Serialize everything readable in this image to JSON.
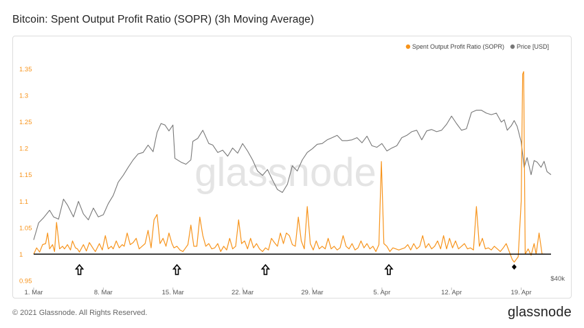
{
  "title": "Bitcoin: Spent Output Profit Ratio (SOPR) (3h Moving Average)",
  "footer": {
    "copyright": "© 2021 Glassnode. All Rights Reserved.",
    "logo": "glassnode"
  },
  "watermark": "glassnode",
  "chart_data": {
    "type": "line",
    "title": "Bitcoin: Spent Output Profit Ratio (SOPR) (3h Moving Average)",
    "x_range_days": [
      0,
      52
    ],
    "x_ticks": [
      {
        "label": "1. Mar",
        "day": 0
      },
      {
        "label": "8. Mar",
        "day": 7
      },
      {
        "label": "15. Mar",
        "day": 14
      },
      {
        "label": "22. Mar",
        "day": 21
      },
      {
        "label": "29. Mar",
        "day": 28
      },
      {
        "label": "5. Apr",
        "day": 35
      },
      {
        "label": "12. Apr",
        "day": 42
      },
      {
        "label": "19. Apr",
        "day": 49
      }
    ],
    "y_left": {
      "ticks": [
        "0.95",
        "1",
        "1.05",
        "1.1",
        "1.15",
        "1.2",
        "1.25",
        "1.3",
        "1.35"
      ],
      "min": 0.95,
      "max": 1.37
    },
    "y_right": {
      "label": "$40k",
      "min": 40000,
      "max": 70000
    },
    "reference_line": 1.0,
    "legend": {
      "placement": "top-right",
      "entries": [
        {
          "name": "Spent Output Profit Ratio (SOPR)",
          "color": "#f7931a"
        },
        {
          "name": "Price [USD]",
          "color": "#777777"
        }
      ]
    },
    "series": [
      {
        "name": "Price [USD]",
        "axis": "right",
        "color": "#777777",
        "points": [
          [
            0,
            45500
          ],
          [
            0.5,
            47800
          ],
          [
            1,
            48500
          ],
          [
            1.6,
            49500
          ],
          [
            2,
            48600
          ],
          [
            2.5,
            48300
          ],
          [
            3,
            51000
          ],
          [
            3.4,
            50200
          ],
          [
            4,
            48600
          ],
          [
            4.5,
            50700
          ],
          [
            5,
            49000
          ],
          [
            5.5,
            48200
          ],
          [
            6,
            49800
          ],
          [
            6.5,
            48600
          ],
          [
            7,
            48900
          ],
          [
            7.5,
            50400
          ],
          [
            8,
            51500
          ],
          [
            8.5,
            53300
          ],
          [
            9,
            54200
          ],
          [
            9.5,
            55300
          ],
          [
            10,
            56300
          ],
          [
            10.5,
            57100
          ],
          [
            11,
            57300
          ],
          [
            11.5,
            58300
          ],
          [
            12,
            57400
          ],
          [
            12.4,
            60000
          ],
          [
            12.8,
            61200
          ],
          [
            13.2,
            61000
          ],
          [
            13.6,
            60200
          ],
          [
            14,
            61000
          ],
          [
            14.2,
            56500
          ],
          [
            14.8,
            56000
          ],
          [
            15.3,
            55700
          ],
          [
            15.8,
            56300
          ],
          [
            16,
            58800
          ],
          [
            16.5,
            59200
          ],
          [
            17,
            60300
          ],
          [
            17.6,
            58500
          ],
          [
            18,
            58300
          ],
          [
            18.5,
            57300
          ],
          [
            19,
            57600
          ],
          [
            19.5,
            56800
          ],
          [
            20,
            57900
          ],
          [
            20.5,
            57200
          ],
          [
            21,
            58500
          ],
          [
            21.5,
            57500
          ],
          [
            22,
            56300
          ],
          [
            22.5,
            54800
          ],
          [
            23,
            54200
          ],
          [
            23.5,
            55000
          ],
          [
            24,
            53600
          ],
          [
            24.5,
            52300
          ],
          [
            25,
            51900
          ],
          [
            25.5,
            53000
          ],
          [
            26,
            55500
          ],
          [
            26.5,
            54800
          ],
          [
            27,
            56300
          ],
          [
            27.5,
            57300
          ],
          [
            28,
            57800
          ],
          [
            28.5,
            58400
          ],
          [
            29,
            58500
          ],
          [
            29.5,
            59000
          ],
          [
            30,
            59300
          ],
          [
            30.5,
            59600
          ],
          [
            31,
            58900
          ],
          [
            31.5,
            58900
          ],
          [
            32,
            59000
          ],
          [
            32.5,
            59300
          ],
          [
            33,
            58600
          ],
          [
            33.5,
            59500
          ],
          [
            34,
            58200
          ],
          [
            34.5,
            58000
          ],
          [
            35,
            58500
          ],
          [
            35.5,
            57500
          ],
          [
            36,
            57900
          ],
          [
            36.5,
            58200
          ],
          [
            37,
            59300
          ],
          [
            37.5,
            59600
          ],
          [
            38,
            60100
          ],
          [
            38.5,
            60300
          ],
          [
            39,
            59000
          ],
          [
            39.5,
            60200
          ],
          [
            40,
            60400
          ],
          [
            40.5,
            60100
          ],
          [
            41,
            60300
          ],
          [
            41.5,
            61100
          ],
          [
            42,
            62200
          ],
          [
            42.5,
            61200
          ],
          [
            43,
            60300
          ],
          [
            43.5,
            60500
          ],
          [
            44,
            62700
          ],
          [
            44.5,
            63000
          ],
          [
            45,
            63000
          ],
          [
            45.5,
            62600
          ],
          [
            46,
            62400
          ],
          [
            46.5,
            62600
          ],
          [
            47,
            61400
          ],
          [
            47.3,
            61700
          ],
          [
            47.6,
            60300
          ],
          [
            48,
            60900
          ],
          [
            48.3,
            61600
          ],
          [
            48.6,
            60800
          ],
          [
            49,
            58700
          ],
          [
            49.3,
            55300
          ],
          [
            49.6,
            56600
          ],
          [
            50,
            54300
          ],
          [
            50.3,
            56200
          ],
          [
            50.6,
            56000
          ],
          [
            51,
            55300
          ],
          [
            51.3,
            56100
          ],
          [
            51.6,
            54700
          ],
          [
            52,
            54300
          ]
        ]
      },
      {
        "name": "Spent Output Profit Ratio (SOPR)",
        "axis": "left",
        "color": "#f7931a",
        "points": [
          [
            0,
            1.0
          ],
          [
            0.3,
            1.012
          ],
          [
            0.6,
            1.004
          ],
          [
            0.9,
            1.018
          ],
          [
            1.2,
            1.02
          ],
          [
            1.4,
            1.04
          ],
          [
            1.6,
            1.01
          ],
          [
            1.9,
            1.018
          ],
          [
            2.1,
            1.005
          ],
          [
            2.3,
            1.06
          ],
          [
            2.6,
            1.01
          ],
          [
            2.9,
            1.015
          ],
          [
            3.1,
            1.01
          ],
          [
            3.4,
            1.018
          ],
          [
            3.7,
            1.008
          ],
          [
            3.9,
            1.025
          ],
          [
            4.2,
            1.012
          ],
          [
            4.4,
            1.01
          ],
          [
            4.6,
            1.004
          ],
          [
            5.0,
            1.018
          ],
          [
            5.3,
            1.006
          ],
          [
            5.6,
            1.022
          ],
          [
            6.0,
            1.01
          ],
          [
            6.2,
            1.005
          ],
          [
            6.6,
            1.02
          ],
          [
            6.9,
            1.008
          ],
          [
            7.2,
            1.035
          ],
          [
            7.5,
            1.01
          ],
          [
            7.8,
            1.015
          ],
          [
            8.0,
            1.01
          ],
          [
            8.3,
            1.025
          ],
          [
            8.6,
            1.012
          ],
          [
            8.9,
            1.018
          ],
          [
            9.1,
            1.015
          ],
          [
            9.4,
            1.04
          ],
          [
            9.7,
            1.018
          ],
          [
            10.0,
            1.022
          ],
          [
            10.3,
            1.03
          ],
          [
            10.6,
            1.01
          ],
          [
            10.9,
            1.015
          ],
          [
            11.2,
            1.02
          ],
          [
            11.5,
            1.045
          ],
          [
            11.8,
            1.012
          ],
          [
            12.1,
            1.065
          ],
          [
            12.4,
            1.075
          ],
          [
            12.7,
            1.02
          ],
          [
            13.0,
            1.03
          ],
          [
            13.3,
            1.015
          ],
          [
            13.6,
            1.04
          ],
          [
            13.9,
            1.02
          ],
          [
            14.1,
            1.012
          ],
          [
            14.4,
            1.015
          ],
          [
            14.7,
            1.008
          ],
          [
            15.0,
            1.005
          ],
          [
            15.2,
            1.01
          ],
          [
            15.5,
            1.018
          ],
          [
            15.8,
            1.055
          ],
          [
            16.1,
            1.015
          ],
          [
            16.4,
            1.015
          ],
          [
            16.7,
            1.07
          ],
          [
            17.0,
            1.035
          ],
          [
            17.3,
            1.015
          ],
          [
            17.6,
            1.02
          ],
          [
            17.9,
            1.01
          ],
          [
            18.2,
            1.012
          ],
          [
            18.5,
            1.02
          ],
          [
            18.8,
            1.005
          ],
          [
            19.1,
            1.015
          ],
          [
            19.4,
            1.008
          ],
          [
            19.7,
            1.03
          ],
          [
            20.0,
            1.01
          ],
          [
            20.3,
            1.015
          ],
          [
            20.6,
            1.065
          ],
          [
            20.9,
            1.02
          ],
          [
            21.2,
            1.025
          ],
          [
            21.5,
            1.01
          ],
          [
            21.8,
            1.03
          ],
          [
            22.1,
            1.012
          ],
          [
            22.4,
            1.02
          ],
          [
            22.7,
            1.01
          ],
          [
            23.0,
            1.005
          ],
          [
            23.3,
            1.012
          ],
          [
            23.6,
            1.008
          ],
          [
            23.9,
            1.03
          ],
          [
            24.2,
            1.022
          ],
          [
            24.5,
            1.015
          ],
          [
            24.8,
            1.04
          ],
          [
            25.1,
            1.02
          ],
          [
            25.4,
            1.04
          ],
          [
            25.7,
            1.035
          ],
          [
            26.0,
            1.018
          ],
          [
            26.3,
            1.015
          ],
          [
            26.6,
            1.07
          ],
          [
            26.9,
            1.025
          ],
          [
            27.2,
            1.01
          ],
          [
            27.5,
            1.09
          ],
          [
            27.8,
            1.02
          ],
          [
            28.1,
            1.008
          ],
          [
            28.4,
            1.025
          ],
          [
            28.7,
            1.01
          ],
          [
            29.0,
            1.015
          ],
          [
            29.3,
            1.01
          ],
          [
            29.6,
            1.03
          ],
          [
            29.9,
            1.01
          ],
          [
            30.2,
            1.015
          ],
          [
            30.5,
            1.008
          ],
          [
            30.8,
            1.012
          ],
          [
            31.1,
            1.035
          ],
          [
            31.4,
            1.015
          ],
          [
            31.7,
            1.01
          ],
          [
            32.0,
            1.02
          ],
          [
            32.3,
            1.008
          ],
          [
            32.6,
            1.012
          ],
          [
            32.9,
            1.025
          ],
          [
            33.2,
            1.012
          ],
          [
            33.5,
            1.02
          ],
          [
            33.8,
            1.01
          ],
          [
            34.1,
            1.015
          ],
          [
            34.4,
            1.005
          ],
          [
            34.7,
            1.018
          ],
          [
            34.95,
            1.175
          ],
          [
            35.2,
            1.02
          ],
          [
            35.5,
            1.015
          ],
          [
            35.8,
            1.005
          ],
          [
            36.1,
            1.012
          ],
          [
            36.4,
            1.01
          ],
          [
            36.7,
            1.008
          ],
          [
            37.0,
            1.01
          ],
          [
            37.3,
            1.012
          ],
          [
            37.6,
            1.018
          ],
          [
            37.9,
            1.008
          ],
          [
            38.2,
            1.02
          ],
          [
            38.5,
            1.01
          ],
          [
            38.8,
            1.015
          ],
          [
            39.1,
            1.035
          ],
          [
            39.4,
            1.012
          ],
          [
            39.7,
            1.02
          ],
          [
            40.0,
            1.01
          ],
          [
            40.3,
            1.015
          ],
          [
            40.6,
            1.025
          ],
          [
            40.9,
            1.01
          ],
          [
            41.2,
            1.035
          ],
          [
            41.5,
            1.01
          ],
          [
            41.8,
            1.03
          ],
          [
            42.1,
            1.012
          ],
          [
            42.4,
            1.025
          ],
          [
            42.7,
            1.01
          ],
          [
            43.0,
            1.015
          ],
          [
            43.3,
            1.02
          ],
          [
            43.6,
            1.01
          ],
          [
            43.9,
            1.012
          ],
          [
            44.2,
            1.008
          ],
          [
            44.5,
            1.09
          ],
          [
            44.8,
            1.015
          ],
          [
            45.1,
            1.03
          ],
          [
            45.4,
            1.01
          ],
          [
            45.7,
            1.012
          ],
          [
            46.0,
            1.008
          ],
          [
            46.3,
            1.015
          ],
          [
            46.6,
            1.01
          ],
          [
            46.9,
            1.005
          ],
          [
            47.2,
            1.012
          ],
          [
            47.5,
            1.02
          ],
          [
            47.8,
            1.005
          ],
          [
            48.1,
            0.99
          ],
          [
            48.3,
            0.985
          ],
          [
            48.5,
            0.99
          ],
          [
            48.7,
            0.995
          ],
          [
            49.0,
            1.1
          ],
          [
            49.15,
            1.34
          ],
          [
            49.25,
            1.345
          ],
          [
            49.4,
            1.0
          ],
          [
            49.7,
            1.01
          ],
          [
            50.0,
            0.998
          ],
          [
            50.3,
            1.02
          ],
          [
            50.5,
            1.0
          ],
          [
            50.8,
            1.04
          ],
          [
            51.1,
            1.0
          ],
          [
            51.4,
            1.0
          ]
        ]
      }
    ],
    "annotations": [
      {
        "type": "arrow-up",
        "day": 4.6
      },
      {
        "type": "arrow-up",
        "day": 14.4
      },
      {
        "type": "arrow-up",
        "day": 23.3
      },
      {
        "type": "arrow-up",
        "day": 35.7
      },
      {
        "type": "dot",
        "day": 48.3
      }
    ]
  }
}
